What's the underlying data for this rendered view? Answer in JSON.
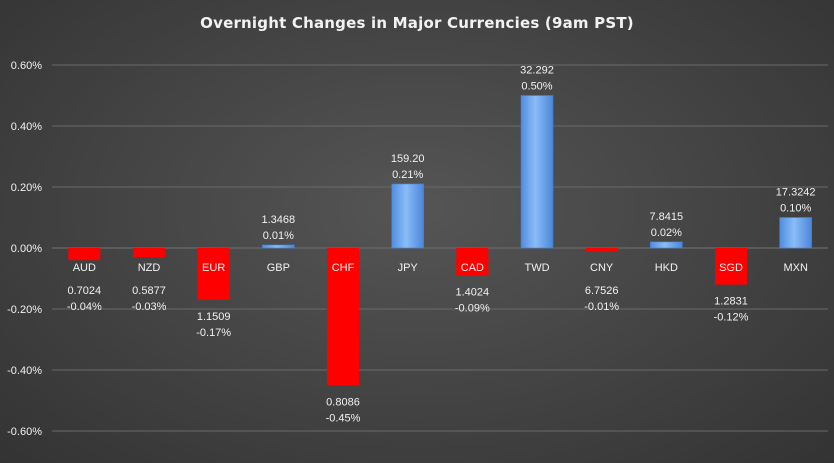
{
  "chart_data": {
    "type": "bar",
    "title": "Overnight Changes in Major Currencies (9am PST)",
    "xlabel": "",
    "ylabel": "",
    "ylim": [
      -0.6,
      0.6
    ],
    "y_ticks": [
      "0.60%",
      "0.40%",
      "0.20%",
      "0.00%",
      "-0.20%",
      "-0.40%",
      "-0.60%"
    ],
    "y_tick_values": [
      0.6,
      0.4,
      0.2,
      0.0,
      -0.2,
      -0.4,
      -0.6
    ],
    "grid": true,
    "categories": [
      "AUD",
      "NZD",
      "EUR",
      "GBP",
      "CHF",
      "JPY",
      "CAD",
      "TWD",
      "CNY",
      "HKD",
      "SGD",
      "MXN"
    ],
    "values": [
      -0.04,
      -0.03,
      -0.17,
      0.01,
      -0.45,
      0.21,
      -0.09,
      0.5,
      -0.01,
      0.02,
      -0.12,
      0.1
    ],
    "value_labels": [
      "-0.04%",
      "-0.03%",
      "-0.17%",
      "0.01%",
      "-0.45%",
      "0.21%",
      "-0.09%",
      "0.50%",
      "-0.01%",
      "0.02%",
      "-0.12%",
      "0.10%"
    ],
    "rates": [
      "0.7024",
      "0.5877",
      "1.1509",
      "1.3468",
      "0.8086",
      "159.20",
      "1.4024",
      "32.292",
      "6.7526",
      "7.8415",
      "1.2831",
      "17.3242"
    ],
    "highlighted": [
      false,
      false,
      true,
      false,
      true,
      false,
      true,
      false,
      false,
      false,
      true,
      false
    ],
    "colors": {
      "positive": "#6fa8f0",
      "positive_dark": "#3f7fd6",
      "negative": "#ff0000",
      "grid": "#6a6a6a",
      "text": "#f2f2f2",
      "highlight_label_bg": "#ff0000"
    }
  }
}
